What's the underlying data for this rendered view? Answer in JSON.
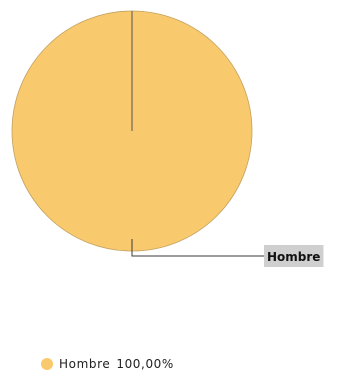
{
  "chart_data": {
    "type": "pie",
    "title": "",
    "categories": [
      "Hombre"
    ],
    "values": [
      100.0
    ],
    "colors": [
      "#F9C96E"
    ],
    "callout_labels": [
      "Hombre"
    ],
    "legend_position": "bottom-left",
    "legend": [
      {
        "label": "Hombre",
        "percent_text": "100,00%"
      }
    ]
  }
}
